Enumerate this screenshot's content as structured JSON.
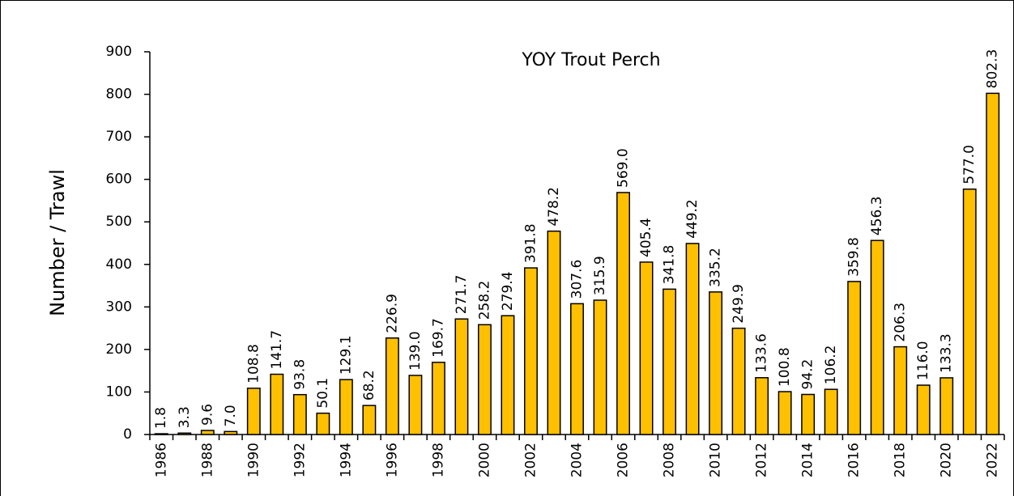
{
  "chart_data": {
    "type": "bar",
    "title": "YOY Trout Perch",
    "y_label": "Number / Trawl",
    "categories": [
      "1986",
      null,
      "1988",
      null,
      "1990",
      null,
      "1992",
      null,
      "1994",
      null,
      "1996",
      null,
      "1998",
      null,
      "2000",
      null,
      "2002",
      null,
      "2004",
      null,
      "2006",
      null,
      "2008",
      null,
      "2010",
      null,
      "2012",
      null,
      "2014",
      null,
      "2016",
      null,
      "2018",
      null,
      "2020",
      null,
      "2022"
    ],
    "values": [
      1.8,
      3.3,
      9.6,
      7.0,
      108.8,
      141.7,
      93.8,
      50.1,
      129.1,
      68.2,
      226.9,
      139.0,
      169.7,
      271.7,
      258.2,
      279.4,
      391.8,
      478.2,
      307.6,
      315.9,
      569.0,
      405.4,
      341.8,
      449.2,
      335.2,
      249.9,
      133.6,
      100.8,
      94.2,
      106.2,
      359.8,
      456.3,
      206.3,
      116.0,
      133.3,
      577.0,
      802.3
    ],
    "value_labels": [
      "1.8",
      "3.3",
      "9.6",
      "7.0",
      "108.8",
      "141.7",
      "93.8",
      "50.1",
      "129.1",
      "68.2",
      "226.9",
      "139.0",
      "169.7",
      "271.7",
      "258.2",
      "279.4",
      "391.8",
      "478.2",
      "307.6",
      "315.9",
      "569.0",
      "405.4",
      "341.8",
      "449.2",
      "335.2",
      "249.9",
      "133.6",
      "100.8",
      "94.2",
      "106.2",
      "359.8",
      "456.3",
      "206.3",
      "116.0",
      "133.3",
      "577.0",
      "802.3"
    ],
    "color": "#FFC000",
    "ylim": [
      0,
      900
    ],
    "yticks": [
      0,
      100,
      200,
      300,
      400,
      500,
      600,
      700,
      800,
      900
    ],
    "grid": false
  }
}
